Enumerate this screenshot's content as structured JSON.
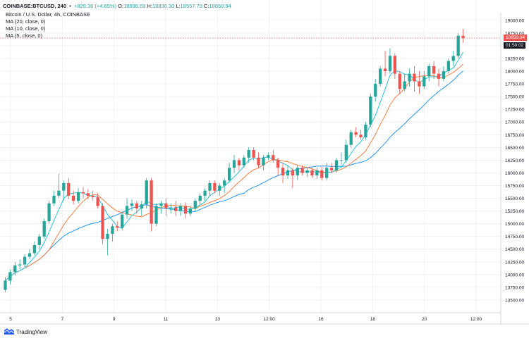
{
  "header": {
    "symbol": "COINBASE:BTCUSD, 240",
    "change": "+829.36 (+4.65%)",
    "open_label": "O:",
    "open": "18696.69",
    "high_label": "H:",
    "high": "18830.30",
    "low_label": "L:",
    "low": "18557.79",
    "close_label": "C:",
    "close": "18650.94"
  },
  "indicators": [
    {
      "label": "Bitcoin / U.S. Dollar, 4h, COINBASE"
    },
    {
      "label": "MA (20, close, 0)"
    },
    {
      "label": "MA (10, close, 0)"
    },
    {
      "label": "MA (5, close, 0)"
    }
  ],
  "brand": "TradingView",
  "price_tag": {
    "value": "18650.94",
    "countdown": "01:50:02"
  },
  "colors": {
    "up": "#26a69a",
    "down": "#ef5350",
    "ma5": "#26c6da",
    "ma10": "#ff7f3f",
    "ma20": "#2196f3",
    "grid": "#e9ecf2"
  },
  "chart_data": {
    "type": "candlestick",
    "x_ticks": [
      "5",
      "7",
      "9",
      "11",
      "13",
      "12:00",
      "16",
      "18",
      "20",
      "12:00"
    ],
    "y_ticks": [
      "13500.00",
      "13750.00",
      "14000.00",
      "14250.00",
      "14500.00",
      "14750.00",
      "15000.00",
      "15250.00",
      "15500.00",
      "15750.00",
      "16000.00",
      "16250.00",
      "16500.00",
      "16750.00",
      "17000.00",
      "17250.00",
      "17500.00",
      "17750.00",
      "18000.00",
      "18250.00",
      "18500.00",
      "18750.00",
      "19000.00"
    ],
    "ylim": [
      13250,
      19150
    ],
    "last_price": 18650.94,
    "candles": [
      {
        "o": 13700,
        "c": 13880,
        "h": 13950,
        "l": 13650
      },
      {
        "o": 13880,
        "c": 14050,
        "h": 14100,
        "l": 13800
      },
      {
        "o": 14050,
        "c": 14180,
        "h": 14250,
        "l": 13980
      },
      {
        "o": 14180,
        "c": 14200,
        "h": 14300,
        "l": 14100
      },
      {
        "o": 14200,
        "c": 14350,
        "h": 14400,
        "l": 14150
      },
      {
        "o": 14350,
        "c": 14420,
        "h": 14500,
        "l": 14300
      },
      {
        "o": 14420,
        "c": 14580,
        "h": 14650,
        "l": 14380
      },
      {
        "o": 14580,
        "c": 14750,
        "h": 14800,
        "l": 14500
      },
      {
        "o": 14750,
        "c": 15050,
        "h": 15100,
        "l": 14700
      },
      {
        "o": 15050,
        "c": 15400,
        "h": 15450,
        "l": 15000
      },
      {
        "o": 15400,
        "c": 15550,
        "h": 15650,
        "l": 15350
      },
      {
        "o": 15550,
        "c": 15650,
        "h": 15980,
        "l": 15500
      },
      {
        "o": 15650,
        "c": 15800,
        "h": 15850,
        "l": 15450
      },
      {
        "o": 15800,
        "c": 15550,
        "h": 15900,
        "l": 15480
      },
      {
        "o": 15550,
        "c": 15450,
        "h": 15650,
        "l": 15380
      },
      {
        "o": 15450,
        "c": 15620,
        "h": 15700,
        "l": 15400
      },
      {
        "o": 15620,
        "c": 15600,
        "h": 15720,
        "l": 15500
      },
      {
        "o": 15600,
        "c": 15550,
        "h": 15680,
        "l": 15480
      },
      {
        "o": 15550,
        "c": 15520,
        "h": 15650,
        "l": 15450
      },
      {
        "o": 15520,
        "c": 15350,
        "h": 15600,
        "l": 15300
      },
      {
        "o": 15350,
        "c": 14700,
        "h": 15400,
        "l": 14600
      },
      {
        "o": 14700,
        "c": 14800,
        "h": 14900,
        "l": 14380
      },
      {
        "o": 14800,
        "c": 14950,
        "h": 15000,
        "l": 14650
      },
      {
        "o": 14950,
        "c": 14920,
        "h": 15050,
        "l": 14850
      },
      {
        "o": 14920,
        "c": 15180,
        "h": 15250,
        "l": 14880
      },
      {
        "o": 15180,
        "c": 15350,
        "h": 15500,
        "l": 15100
      },
      {
        "o": 15350,
        "c": 15400,
        "h": 15480,
        "l": 15250
      },
      {
        "o": 15400,
        "c": 15300,
        "h": 15450,
        "l": 15200
      },
      {
        "o": 15300,
        "c": 15380,
        "h": 15450,
        "l": 15150
      },
      {
        "o": 15380,
        "c": 15850,
        "h": 15900,
        "l": 15300
      },
      {
        "o": 15850,
        "c": 15000,
        "h": 15900,
        "l": 14850
      },
      {
        "o": 15000,
        "c": 15350,
        "h": 15400,
        "l": 14950
      },
      {
        "o": 15350,
        "c": 15400,
        "h": 15450,
        "l": 15200
      },
      {
        "o": 15400,
        "c": 15300,
        "h": 15500,
        "l": 15150
      },
      {
        "o": 15300,
        "c": 15320,
        "h": 15400,
        "l": 15200
      },
      {
        "o": 15320,
        "c": 15250,
        "h": 15450,
        "l": 15150
      },
      {
        "o": 15250,
        "c": 15350,
        "h": 15400,
        "l": 15150
      },
      {
        "o": 15350,
        "c": 15200,
        "h": 15420,
        "l": 15100
      },
      {
        "o": 15200,
        "c": 15300,
        "h": 15350,
        "l": 15150
      },
      {
        "o": 15300,
        "c": 15450,
        "h": 15500,
        "l": 15250
      },
      {
        "o": 15450,
        "c": 15550,
        "h": 15600,
        "l": 15380
      },
      {
        "o": 15550,
        "c": 15650,
        "h": 15700,
        "l": 15450
      },
      {
        "o": 15650,
        "c": 15800,
        "h": 15850,
        "l": 15550
      },
      {
        "o": 15800,
        "c": 15650,
        "h": 15850,
        "l": 15600
      },
      {
        "o": 15650,
        "c": 15750,
        "h": 15800,
        "l": 15550
      },
      {
        "o": 15750,
        "c": 15850,
        "h": 15900,
        "l": 15600
      },
      {
        "o": 15850,
        "c": 16100,
        "h": 16200,
        "l": 15800
      },
      {
        "o": 16100,
        "c": 16250,
        "h": 16350,
        "l": 16000
      },
      {
        "o": 16250,
        "c": 16150,
        "h": 16300,
        "l": 16050
      },
      {
        "o": 16150,
        "c": 16300,
        "h": 16350,
        "l": 16100
      },
      {
        "o": 16300,
        "c": 16450,
        "h": 16500,
        "l": 16200
      },
      {
        "o": 16450,
        "c": 16300,
        "h": 16500,
        "l": 16250
      },
      {
        "o": 16300,
        "c": 16150,
        "h": 16400,
        "l": 16100
      },
      {
        "o": 16150,
        "c": 16300,
        "h": 16350,
        "l": 16050
      },
      {
        "o": 16300,
        "c": 16350,
        "h": 16400,
        "l": 16250
      },
      {
        "o": 16350,
        "c": 16250,
        "h": 16450,
        "l": 16200
      },
      {
        "o": 16250,
        "c": 16100,
        "h": 16300,
        "l": 15950
      },
      {
        "o": 16100,
        "c": 15950,
        "h": 16200,
        "l": 15800
      },
      {
        "o": 15950,
        "c": 16050,
        "h": 16150,
        "l": 15880
      },
      {
        "o": 16050,
        "c": 15950,
        "h": 16100,
        "l": 15700
      },
      {
        "o": 15950,
        "c": 16100,
        "h": 16150,
        "l": 15850
      },
      {
        "o": 16100,
        "c": 16000,
        "h": 16150,
        "l": 15950
      },
      {
        "o": 16000,
        "c": 16050,
        "h": 16100,
        "l": 15920
      },
      {
        "o": 16050,
        "c": 15950,
        "h": 16100,
        "l": 15900
      },
      {
        "o": 15950,
        "c": 16050,
        "h": 16100,
        "l": 15880
      },
      {
        "o": 16050,
        "c": 15900,
        "h": 16120,
        "l": 15850
      },
      {
        "o": 15900,
        "c": 16100,
        "h": 16200,
        "l": 15850
      },
      {
        "o": 16100,
        "c": 16050,
        "h": 16200,
        "l": 16000
      },
      {
        "o": 16050,
        "c": 16250,
        "h": 16300,
        "l": 16000
      },
      {
        "o": 16250,
        "c": 16250,
        "h": 16400,
        "l": 16150
      },
      {
        "o": 16250,
        "c": 16550,
        "h": 16650,
        "l": 16200
      },
      {
        "o": 16550,
        "c": 16800,
        "h": 16850,
        "l": 16500
      },
      {
        "o": 16800,
        "c": 16750,
        "h": 16900,
        "l": 16700
      },
      {
        "o": 16750,
        "c": 16700,
        "h": 16850,
        "l": 16650
      },
      {
        "o": 16700,
        "c": 16950,
        "h": 17000,
        "l": 16650
      },
      {
        "o": 16950,
        "c": 17500,
        "h": 17550,
        "l": 16900
      },
      {
        "o": 17500,
        "c": 17750,
        "h": 17850,
        "l": 17400
      },
      {
        "o": 17750,
        "c": 18050,
        "h": 18100,
        "l": 17700
      },
      {
        "o": 18050,
        "c": 18000,
        "h": 18400,
        "l": 17900
      },
      {
        "o": 18000,
        "c": 18300,
        "h": 18450,
        "l": 17950
      },
      {
        "o": 18300,
        "c": 17950,
        "h": 18350,
        "l": 17850
      },
      {
        "o": 17950,
        "c": 17650,
        "h": 18000,
        "l": 17550
      },
      {
        "o": 17650,
        "c": 17800,
        "h": 17950,
        "l": 17600
      },
      {
        "o": 17800,
        "c": 17950,
        "h": 18050,
        "l": 17700
      },
      {
        "o": 17950,
        "c": 17800,
        "h": 18100,
        "l": 17600
      },
      {
        "o": 17800,
        "c": 17700,
        "h": 18000,
        "l": 17550
      },
      {
        "o": 17700,
        "c": 17900,
        "h": 18000,
        "l": 17650
      },
      {
        "o": 17900,
        "c": 18100,
        "h": 18150,
        "l": 17800
      },
      {
        "o": 18100,
        "c": 17950,
        "h": 18200,
        "l": 17850
      },
      {
        "o": 17950,
        "c": 17850,
        "h": 18050,
        "l": 17700
      },
      {
        "o": 17850,
        "c": 18000,
        "h": 18100,
        "l": 17800
      },
      {
        "o": 18000,
        "c": 18200,
        "h": 18250,
        "l": 17950
      },
      {
        "o": 18200,
        "c": 18300,
        "h": 18400,
        "l": 18100
      },
      {
        "o": 18300,
        "c": 18696.69,
        "h": 18750,
        "l": 18250
      },
      {
        "o": 18696.69,
        "c": 18650.94,
        "h": 18830.3,
        "l": 18557.79
      }
    ]
  }
}
